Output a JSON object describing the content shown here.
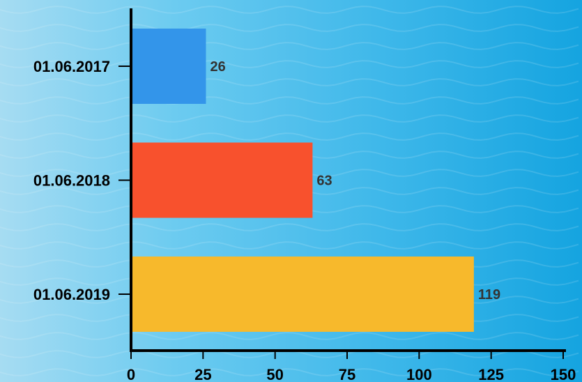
{
  "chart_data": {
    "type": "bar",
    "orientation": "horizontal",
    "categories": [
      "01.06.2017",
      "01.06.2018",
      "01.06.2019"
    ],
    "values": [
      26,
      63,
      119
    ],
    "bar_colors": [
      "#3395ea",
      "#f8512d",
      "#f7b92c"
    ],
    "xlim": [
      0,
      150
    ],
    "x_ticks": [
      0,
      25,
      50,
      75,
      100,
      125,
      150
    ],
    "title": "",
    "xlabel": "",
    "ylabel": "",
    "grid": false,
    "data_labels": true
  },
  "colors": {
    "background_left": "#a6dcf2",
    "background_right": "#15a4e0",
    "axis": "#000000",
    "data_label": "#333333"
  }
}
